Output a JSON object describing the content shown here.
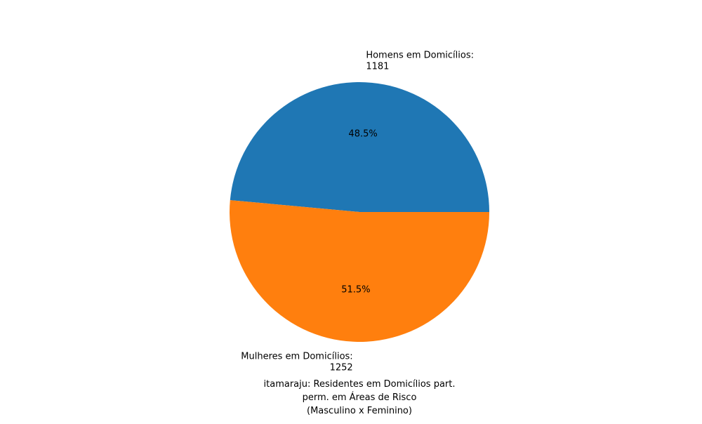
{
  "chart_data": {
    "type": "pie",
    "categories": [
      "Homens em Domicílios:",
      "Mulheres em Domicílios:"
    ],
    "values": [
      1181,
      1252
    ],
    "value_labels": [
      "1181",
      "1252"
    ],
    "percent_labels": [
      "48.5%",
      "51.5%"
    ],
    "colors": [
      "#1f77b4",
      "#ff7f0e"
    ],
    "title_lines": [
      "itamaraju: Residentes em Domicílios part.",
      "perm. em Áreas de Risco",
      "(Masculino x Feminino)"
    ],
    "start_angle_deg": 0,
    "direction": "counterclockwise",
    "legend": "none"
  }
}
